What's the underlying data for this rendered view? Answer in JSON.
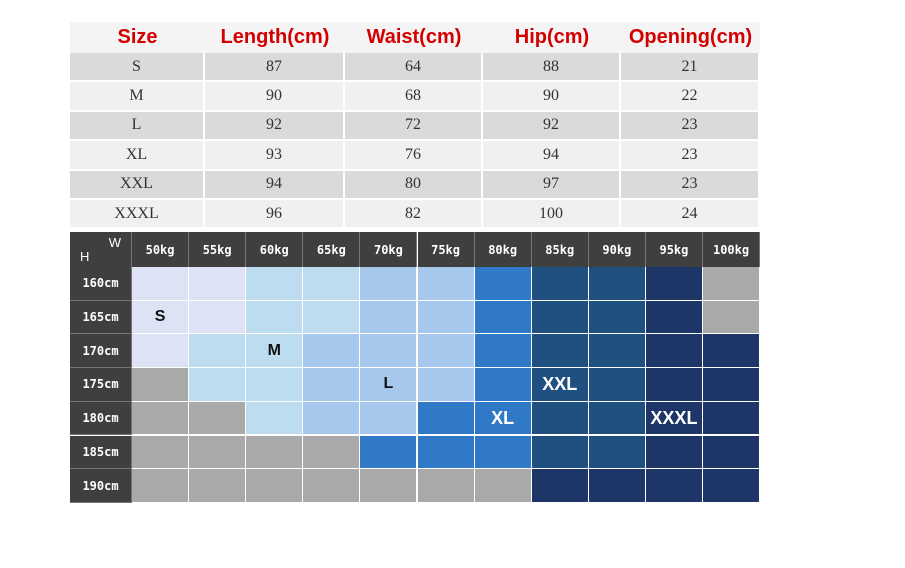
{
  "size_table": {
    "headers": [
      "Size",
      "Length(cm)",
      "Waist(cm)",
      "Hip(cm)",
      "Opening(cm)"
    ],
    "rows": [
      [
        "S",
        "87",
        "64",
        "88",
        "21"
      ],
      [
        "M",
        "90",
        "68",
        "90",
        "22"
      ],
      [
        "L",
        "92",
        "72",
        "92",
        "23"
      ],
      [
        "XL",
        "93",
        "76",
        "94",
        "23"
      ],
      [
        "XXL",
        "94",
        "80",
        "97",
        "23"
      ],
      [
        "XXXL",
        "96",
        "82",
        "100",
        "24"
      ]
    ]
  },
  "fit_chart": {
    "height_label": "H",
    "weight_label": "W",
    "weights": [
      "50kg",
      "55kg",
      "60kg",
      "65kg",
      "70kg",
      "75kg",
      "80kg",
      "85kg",
      "90kg",
      "95kg",
      "100kg"
    ],
    "heights": [
      "160cm",
      "165cm",
      "170cm",
      "175cm",
      "180cm",
      "185cm",
      "190cm"
    ],
    "cells": [
      [
        null,
        null,
        null,
        null,
        null,
        null,
        null,
        null,
        null,
        null,
        null
      ],
      [
        "S",
        null,
        null,
        null,
        null,
        null,
        null,
        null,
        null,
        null,
        null
      ],
      [
        null,
        null,
        "M",
        null,
        null,
        null,
        null,
        null,
        null,
        null,
        null
      ],
      [
        null,
        null,
        null,
        null,
        "L",
        null,
        null,
        "XXL",
        null,
        null,
        null
      ],
      [
        null,
        null,
        null,
        null,
        null,
        null,
        "XL",
        null,
        null,
        "XXXL",
        null
      ],
      [
        null,
        null,
        null,
        null,
        null,
        null,
        null,
        null,
        null,
        null,
        null
      ],
      [
        null,
        null,
        null,
        null,
        null,
        null,
        null,
        null,
        null,
        null,
        null
      ]
    ]
  }
}
